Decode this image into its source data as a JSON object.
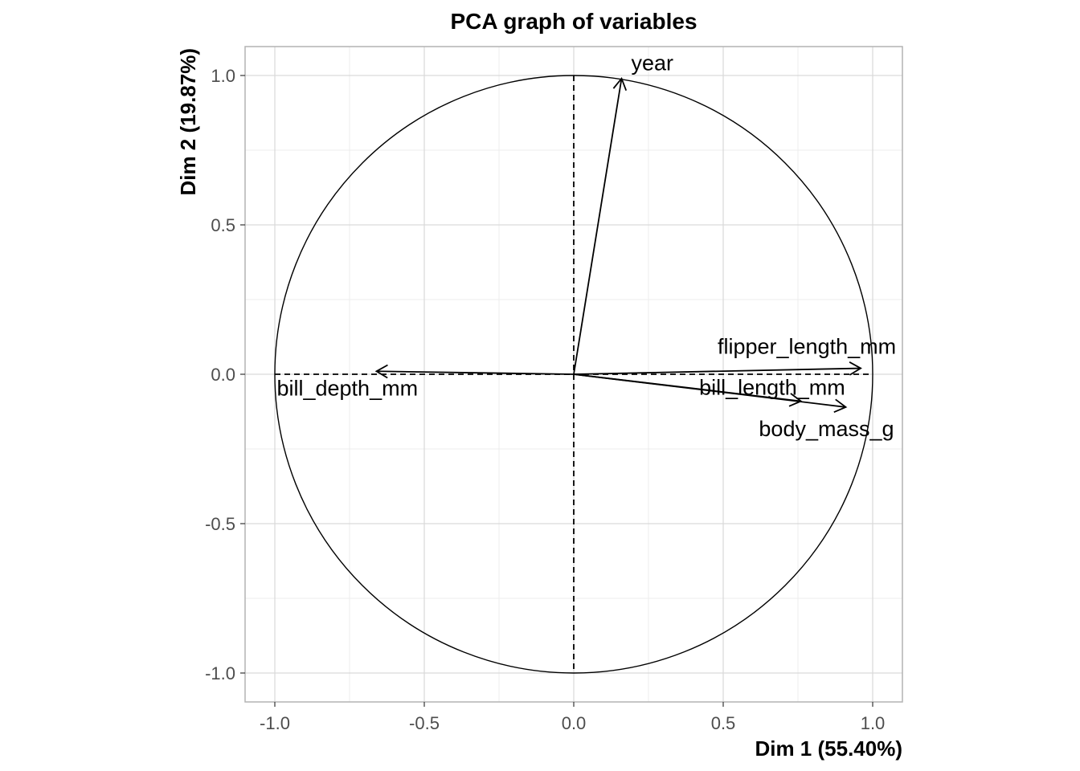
{
  "chart_data": {
    "type": "scatter",
    "title": "PCA graph of variables",
    "xlabel": "Dim 1 (55.40%)",
    "ylabel": "Dim 2 (19.87%)",
    "xlim": [
      -1.1,
      1.1
    ],
    "ylim": [
      -1.1,
      1.1
    ],
    "xticks": [
      -1.0,
      -0.5,
      0.0,
      0.5,
      1.0
    ],
    "yticks": [
      -1.0,
      -0.5,
      0.0,
      0.5,
      1.0
    ],
    "xtick_labels": [
      "-1.0",
      "-0.5",
      "0.0",
      "0.5",
      "1.0"
    ],
    "ytick_labels": [
      "-1.0",
      "-0.5",
      "0.0",
      "0.5",
      "1.0"
    ],
    "grid": true,
    "correlation_circle_radius": 1.0,
    "variables": [
      {
        "name": "year",
        "x": 0.16,
        "y": 0.99
      },
      {
        "name": "flipper_length_mm",
        "x": 0.96,
        "y": 0.02
      },
      {
        "name": "bill_length_mm",
        "x": 0.76,
        "y": -0.09
      },
      {
        "name": "body_mass_g",
        "x": 0.91,
        "y": -0.11
      },
      {
        "name": "bill_depth_mm",
        "x": -0.66,
        "y": 0.01
      }
    ]
  }
}
